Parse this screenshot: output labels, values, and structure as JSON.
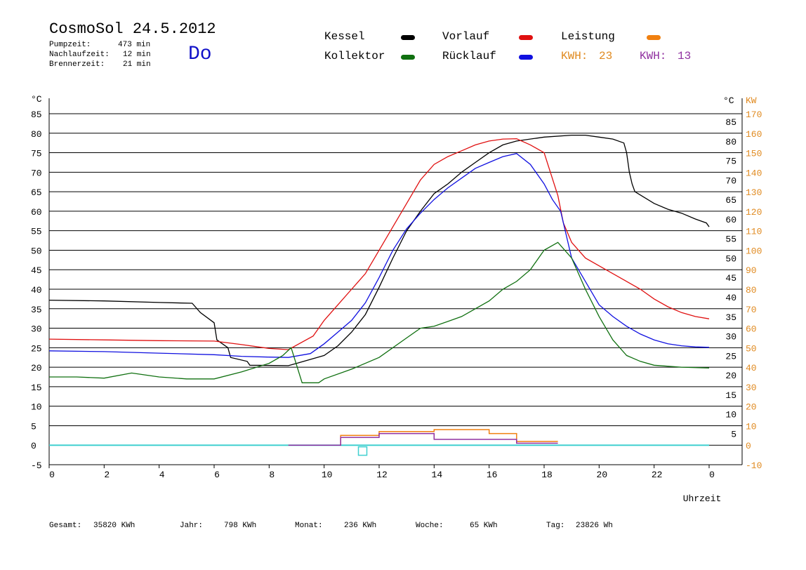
{
  "header": {
    "title": "CosmoSol 24.5.2012",
    "day": "Do",
    "stats": [
      {
        "label": "Pumpzeit:",
        "value": "473 min"
      },
      {
        "label": "Nachlaufzeit:",
        "value": "12 min"
      },
      {
        "label": "Brennerzeit:",
        "value": "21 min"
      }
    ]
  },
  "legend": [
    {
      "name": "Kessel",
      "color": "#000000"
    },
    {
      "name": "Vorlauf",
      "color": "#e01010"
    },
    {
      "name": "Leistung",
      "color": "#f08010"
    },
    {
      "name": "Kollektor",
      "color": "#107010"
    },
    {
      "name": "Rücklauf",
      "color": "#1010e0"
    }
  ],
  "kwh": [
    {
      "label": "KWH:",
      "value": "23",
      "color": "#e08a20"
    },
    {
      "label": "KWH:",
      "value": "13",
      "color": "#9030a0"
    }
  ],
  "footer": [
    {
      "label": "Gesamt:",
      "value": "35820 KWh"
    },
    {
      "label": "Jahr:",
      "value": "798 KWh"
    },
    {
      "label": "Monat:",
      "value": "236 KWh"
    },
    {
      "label": "Woche:",
      "value": "65 KWh"
    },
    {
      "label": "Tag:",
      "value": "23826 Wh"
    }
  ],
  "chart_data": {
    "type": "line",
    "xlabel": "Uhrzeit",
    "ylabel_left": "°C",
    "ylabel_right": "KW",
    "xlim": [
      0,
      24
    ],
    "ylim_left": [
      -5,
      85
    ],
    "ylim_right": [
      -10,
      170
    ],
    "x_ticks": [
      "0",
      "2",
      "4",
      "6",
      "8",
      "10",
      "12",
      "14",
      "16",
      "18",
      "20",
      "22",
      "0"
    ],
    "y_left_ticks": [
      "85",
      "80",
      "75",
      "70",
      "65",
      "60",
      "55",
      "50",
      "45",
      "40",
      "35",
      "30",
      "25",
      "20",
      "15",
      "10",
      "5",
      "0",
      "-5"
    ],
    "y_right_ticks_c": [
      "85",
      "80",
      "75",
      "70",
      "65",
      "60",
      "55",
      "50",
      "45",
      "40",
      "35",
      "30",
      "25",
      "20",
      "15",
      "10",
      "5"
    ],
    "y_right_ticks_kw": [
      "170",
      "160",
      "150",
      "140",
      "130",
      "120",
      "110",
      "100",
      "90",
      "80",
      "70",
      "60",
      "50",
      "40",
      "30",
      "20",
      "10",
      "0",
      "-10"
    ],
    "grid": true,
    "series": [
      {
        "name": "Kessel",
        "color": "#000000",
        "points": [
          [
            0,
            37.2
          ],
          [
            2,
            37.0
          ],
          [
            4,
            36.6
          ],
          [
            5.2,
            36.4
          ],
          [
            5.5,
            34
          ],
          [
            6,
            31.4
          ],
          [
            6.1,
            27
          ],
          [
            6.5,
            25
          ],
          [
            6.6,
            22.5
          ],
          [
            7.2,
            21.5
          ],
          [
            7.3,
            20.5
          ],
          [
            8.7,
            20.4
          ],
          [
            9,
            21
          ],
          [
            9.5,
            22
          ],
          [
            10,
            23
          ],
          [
            10.5,
            25.5
          ],
          [
            11,
            29
          ],
          [
            11.5,
            33.5
          ],
          [
            12,
            40.5
          ],
          [
            12.5,
            48
          ],
          [
            13,
            55
          ],
          [
            13.5,
            60
          ],
          [
            14,
            64.5
          ],
          [
            14.5,
            67
          ],
          [
            15,
            70
          ],
          [
            15.5,
            72.5
          ],
          [
            16,
            75
          ],
          [
            16.5,
            77
          ],
          [
            17,
            78
          ],
          [
            18,
            79
          ],
          [
            19,
            79.5
          ],
          [
            19.5,
            79.5
          ],
          [
            20,
            79
          ],
          [
            20.5,
            78.5
          ],
          [
            20.9,
            77.5
          ],
          [
            21,
            75
          ],
          [
            21.1,
            70
          ],
          [
            21.2,
            67
          ],
          [
            21.3,
            65
          ],
          [
            22,
            62
          ],
          [
            22.5,
            60.5
          ],
          [
            23,
            59.5
          ],
          [
            23.5,
            58
          ],
          [
            23.9,
            57
          ],
          [
            24,
            56
          ]
        ]
      },
      {
        "name": "Vorlauf",
        "color": "#e01010",
        "points": [
          [
            0,
            27.2
          ],
          [
            2,
            27.0
          ],
          [
            4,
            26.8
          ],
          [
            6,
            26.7
          ],
          [
            7,
            25.8
          ],
          [
            8,
            24.8
          ],
          [
            8.7,
            24.5
          ],
          [
            9.6,
            28
          ],
          [
            10,
            32
          ],
          [
            10.5,
            36
          ],
          [
            11,
            40
          ],
          [
            11.5,
            44
          ],
          [
            12,
            50
          ],
          [
            12.5,
            56
          ],
          [
            13,
            62
          ],
          [
            13.5,
            68
          ],
          [
            14,
            72
          ],
          [
            14.5,
            74
          ],
          [
            15,
            75.5
          ],
          [
            15.5,
            77
          ],
          [
            16,
            78
          ],
          [
            16.5,
            78.5
          ],
          [
            17,
            78.6
          ],
          [
            17.5,
            77
          ],
          [
            18,
            75
          ],
          [
            18.5,
            64
          ],
          [
            18.7,
            57
          ],
          [
            19,
            52
          ],
          [
            19.5,
            48
          ],
          [
            20,
            46
          ],
          [
            20.5,
            44
          ],
          [
            21,
            42
          ],
          [
            21.5,
            40
          ],
          [
            22,
            37.5
          ],
          [
            22.5,
            35.5
          ],
          [
            23,
            34
          ],
          [
            23.5,
            33
          ],
          [
            24,
            32.4
          ]
        ]
      },
      {
        "name": "Rücklauf",
        "color": "#1010e0",
        "points": [
          [
            0,
            24.2
          ],
          [
            2,
            24.0
          ],
          [
            4,
            23.6
          ],
          [
            6,
            23.2
          ],
          [
            7,
            22.8
          ],
          [
            8,
            22.6
          ],
          [
            8.7,
            22.5
          ],
          [
            9.5,
            23.5
          ],
          [
            10,
            26
          ],
          [
            10.5,
            29
          ],
          [
            11,
            32
          ],
          [
            11.5,
            36.5
          ],
          [
            12,
            43
          ],
          [
            12.5,
            50
          ],
          [
            13,
            55.5
          ],
          [
            13.5,
            59.5
          ],
          [
            14,
            63
          ],
          [
            14.5,
            66
          ],
          [
            15,
            68.5
          ],
          [
            15.5,
            71
          ],
          [
            16,
            72.5
          ],
          [
            16.5,
            74
          ],
          [
            17,
            74.8
          ],
          [
            17.5,
            72
          ],
          [
            18,
            67
          ],
          [
            18.3,
            63
          ],
          [
            18.6,
            60
          ],
          [
            19,
            48
          ],
          [
            19.5,
            42
          ],
          [
            20,
            36
          ],
          [
            20.5,
            33
          ],
          [
            21,
            30.5
          ],
          [
            21.5,
            28.5
          ],
          [
            22,
            27
          ],
          [
            22.5,
            26
          ],
          [
            23,
            25.5
          ],
          [
            23.5,
            25.2
          ],
          [
            24,
            25.1
          ]
        ]
      },
      {
        "name": "Kollektor",
        "color": "#107010",
        "points": [
          [
            0,
            17.5
          ],
          [
            1,
            17.5
          ],
          [
            2,
            17.2
          ],
          [
            3,
            18.5
          ],
          [
            4,
            17.5
          ],
          [
            5,
            17.0
          ],
          [
            6,
            17.0
          ],
          [
            7,
            18.8
          ],
          [
            8,
            21
          ],
          [
            8.5,
            23
          ],
          [
            8.8,
            25
          ],
          [
            9.2,
            16
          ],
          [
            9.8,
            16
          ],
          [
            10,
            17
          ],
          [
            11,
            19.5
          ],
          [
            12,
            22.5
          ],
          [
            13,
            27.5
          ],
          [
            13.5,
            30
          ],
          [
            14,
            30.5
          ],
          [
            15,
            33
          ],
          [
            16,
            37
          ],
          [
            16.5,
            40
          ],
          [
            17,
            42
          ],
          [
            17.5,
            45
          ],
          [
            18,
            50
          ],
          [
            18.5,
            52
          ],
          [
            19,
            48
          ],
          [
            19.5,
            40
          ],
          [
            20,
            33
          ],
          [
            20.5,
            27
          ],
          [
            21,
            23
          ],
          [
            21.5,
            21.5
          ],
          [
            22,
            20.5
          ],
          [
            23,
            20
          ],
          [
            24,
            19.8
          ]
        ]
      }
    ],
    "bars": [
      {
        "name": "Leistung",
        "color": "#f08010",
        "segments": [
          [
            8.7,
            10.6,
            0
          ],
          [
            10.6,
            12,
            2.5
          ],
          [
            12,
            14,
            3.5
          ],
          [
            14,
            16,
            4
          ],
          [
            16,
            17,
            3
          ],
          [
            17,
            18.5,
            1
          ]
        ]
      },
      {
        "name": "KWH",
        "color": "#9030a0",
        "segments": [
          [
            8.7,
            10.6,
            0
          ],
          [
            10.6,
            12,
            2
          ],
          [
            12,
            14,
            3
          ],
          [
            14,
            16,
            1.5
          ],
          [
            16,
            17,
            1.5
          ],
          [
            17,
            18.5,
            0.5
          ]
        ]
      }
    ],
    "zero_line_color": "#40d0d0",
    "marker": {
      "x": 11.4,
      "y": -1.5,
      "color": "#40d0d0"
    }
  }
}
